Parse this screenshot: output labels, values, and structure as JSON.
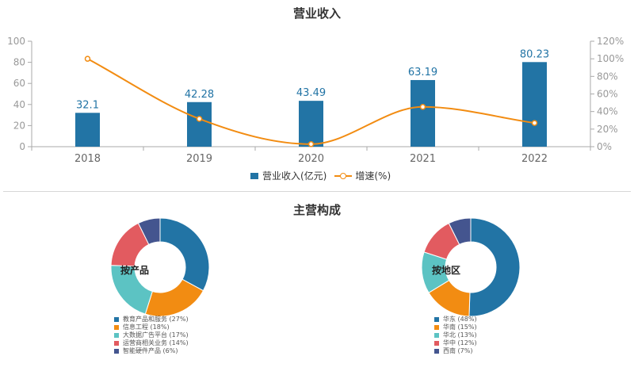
{
  "chart_data": [
    {
      "type": "bar",
      "title": "营业收入",
      "categories": [
        "2018",
        "2019",
        "2020",
        "2021",
        "2022"
      ],
      "series": [
        {
          "name": "营业收入(亿元)",
          "type": "bar",
          "axis": "left",
          "values": [
            32.1,
            42.28,
            43.49,
            63.19,
            80.23
          ],
          "labels": [
            "32.1",
            "42.28",
            "43.49",
            "63.19",
            "80.23"
          ],
          "color": "#2274a5"
        },
        {
          "name": "增速(%)",
          "type": "line",
          "axis": "right",
          "smooth": true,
          "values": [
            100,
            31.7,
            2.9,
            45.3,
            27
          ],
          "color": "#f28c12"
        }
      ],
      "y_left": {
        "min": 0,
        "max": 100,
        "ticks": [
          "0",
          "20",
          "40",
          "60",
          "80",
          "100"
        ]
      },
      "y_right": {
        "min": 0,
        "max": 120,
        "ticks": [
          "0%",
          "20%",
          "40%",
          "60%",
          "80%",
          "100%",
          "120%"
        ]
      },
      "legend_position": "bottom",
      "grid": false
    },
    {
      "type": "pie",
      "title": "主营构成",
      "center_label": "按产品",
      "slices": [
        {
          "label": "教育产品和服务 (27%)",
          "value": 27,
          "color": "#2274a5"
        },
        {
          "label": "信息工程 (18%)",
          "value": 18,
          "color": "#f28c12"
        },
        {
          "label": "大数据广告平台 (17%)",
          "value": 17,
          "color": "#5cc3c3"
        },
        {
          "label": "运营商相关业务 (14%)",
          "value": 14,
          "color": "#e25b60"
        },
        {
          "label": "智能硬件产品 (6%)",
          "value": 6,
          "color": "#44558f"
        }
      ],
      "legend_position": "bottom"
    },
    {
      "type": "pie",
      "title": "主营构成",
      "center_label": "按地区",
      "slices": [
        {
          "label": "华东 (48%)",
          "value": 48,
          "color": "#2274a5"
        },
        {
          "label": "华南 (15%)",
          "value": 15,
          "color": "#f28c12"
        },
        {
          "label": "华北 (13%)",
          "value": 13,
          "color": "#5cc3c3"
        },
        {
          "label": "华中 (12%)",
          "value": 12,
          "color": "#e25b60"
        },
        {
          "label": "西南 (7%)",
          "value": 7,
          "color": "#44558f"
        }
      ],
      "legend_position": "bottom"
    }
  ]
}
